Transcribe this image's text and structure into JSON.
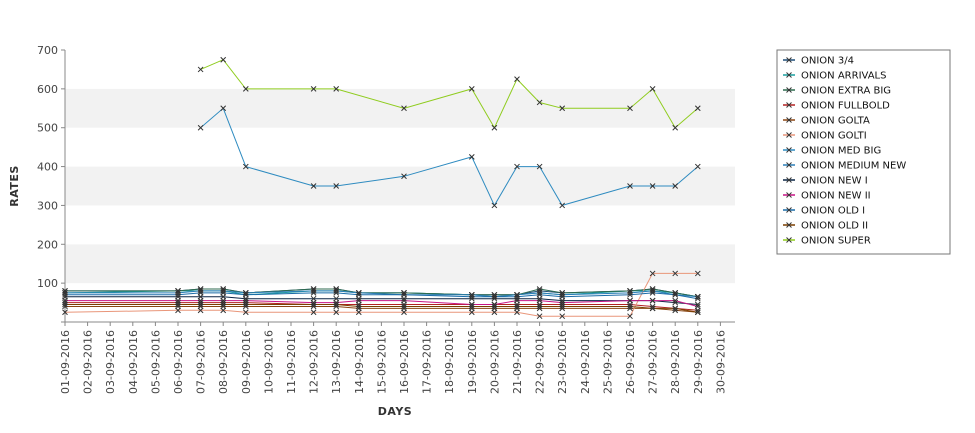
{
  "chart_data": {
    "type": "line",
    "xlabel": "DAYS",
    "ylabel": "RATES",
    "ylim": [
      0,
      700
    ],
    "yticks": [
      100,
      200,
      300,
      400,
      500,
      600,
      700
    ],
    "grid": "alternating horizontal bands",
    "legend_position": "right",
    "x_categories": [
      "01-09-2016",
      "02-09-2016",
      "03-09-2016",
      "04-09-2016",
      "05-09-2016",
      "06-09-2016",
      "07-09-2016",
      "08-09-2016",
      "09-09-2016",
      "10-09-2016",
      "11-09-2016",
      "12-09-2016",
      "13-09-2016",
      "14-09-2016",
      "15-09-2016",
      "16-09-2016",
      "17-09-2016",
      "18-09-2016",
      "19-09-2016",
      "20-09-2016",
      "21-09-2016",
      "22-09-2016",
      "23-09-2016",
      "24-09-2016",
      "25-09-2016",
      "26-09-2016",
      "27-09-2016",
      "28-09-2016",
      "29-09-2016",
      "30-09-2016"
    ],
    "series": [
      {
        "name": "ONION 3/4",
        "color": "#1f4e79",
        "points": [
          [
            "01-09-2016",
            80
          ],
          [
            "06-09-2016",
            80
          ],
          [
            "07-09-2016",
            85
          ],
          [
            "08-09-2016",
            85
          ],
          [
            "09-09-2016",
            75
          ],
          [
            "12-09-2016",
            85
          ],
          [
            "13-09-2016",
            85
          ],
          [
            "14-09-2016",
            75
          ],
          [
            "16-09-2016",
            75
          ],
          [
            "19-09-2016",
            70
          ],
          [
            "20-09-2016",
            70
          ],
          [
            "21-09-2016",
            70
          ],
          [
            "22-09-2016",
            80
          ],
          [
            "23-09-2016",
            75
          ],
          [
            "26-09-2016",
            80
          ],
          [
            "27-09-2016",
            85
          ],
          [
            "28-09-2016",
            75
          ],
          [
            "29-09-2016",
            65
          ]
        ]
      },
      {
        "name": "ONION ARRIVALS",
        "color": "#1aa0a0",
        "points": [
          [
            "01-09-2016",
            75
          ],
          [
            "06-09-2016",
            80
          ],
          [
            "07-09-2016",
            80
          ],
          [
            "08-09-2016",
            80
          ],
          [
            "09-09-2016",
            70
          ],
          [
            "12-09-2016",
            80
          ],
          [
            "13-09-2016",
            80
          ],
          [
            "14-09-2016",
            75
          ],
          [
            "16-09-2016",
            75
          ],
          [
            "19-09-2016",
            70
          ],
          [
            "20-09-2016",
            65
          ],
          [
            "21-09-2016",
            70
          ],
          [
            "22-09-2016",
            75
          ],
          [
            "23-09-2016",
            70
          ],
          [
            "26-09-2016",
            80
          ],
          [
            "27-09-2016",
            80
          ],
          [
            "28-09-2016",
            75
          ],
          [
            "29-09-2016",
            65
          ]
        ]
      },
      {
        "name": "ONION EXTRA BIG",
        "color": "#2d6a4f",
        "points": [
          [
            "01-09-2016",
            80
          ],
          [
            "06-09-2016",
            80
          ],
          [
            "07-09-2016",
            85
          ],
          [
            "08-09-2016",
            85
          ],
          [
            "09-09-2016",
            75
          ],
          [
            "12-09-2016",
            85
          ],
          [
            "13-09-2016",
            85
          ],
          [
            "14-09-2016",
            75
          ],
          [
            "16-09-2016",
            75
          ],
          [
            "19-09-2016",
            70
          ],
          [
            "20-09-2016",
            70
          ],
          [
            "21-09-2016",
            70
          ],
          [
            "22-09-2016",
            85
          ],
          [
            "23-09-2016",
            75
          ],
          [
            "26-09-2016",
            80
          ],
          [
            "27-09-2016",
            85
          ],
          [
            "28-09-2016",
            75
          ],
          [
            "29-09-2016",
            65
          ]
        ]
      },
      {
        "name": "ONION FULLBOLD",
        "color": "#b22222",
        "points": [
          [
            "01-09-2016",
            50
          ],
          [
            "06-09-2016",
            50
          ],
          [
            "07-09-2016",
            50
          ],
          [
            "08-09-2016",
            50
          ],
          [
            "09-09-2016",
            50
          ],
          [
            "12-09-2016",
            45
          ],
          [
            "13-09-2016",
            45
          ],
          [
            "14-09-2016",
            45
          ],
          [
            "16-09-2016",
            45
          ],
          [
            "19-09-2016",
            45
          ],
          [
            "20-09-2016",
            45
          ],
          [
            "21-09-2016",
            45
          ],
          [
            "22-09-2016",
            45
          ],
          [
            "23-09-2016",
            45
          ],
          [
            "26-09-2016",
            45
          ],
          [
            "27-09-2016",
            40
          ],
          [
            "28-09-2016",
            35
          ],
          [
            "29-09-2016",
            30
          ]
        ]
      },
      {
        "name": "ONION GOLTA",
        "color": "#8b4513",
        "points": [
          [
            "01-09-2016",
            40
          ],
          [
            "06-09-2016",
            40
          ],
          [
            "07-09-2016",
            40
          ],
          [
            "08-09-2016",
            40
          ],
          [
            "09-09-2016",
            40
          ],
          [
            "12-09-2016",
            40
          ],
          [
            "13-09-2016",
            40
          ],
          [
            "14-09-2016",
            35
          ],
          [
            "16-09-2016",
            35
          ],
          [
            "19-09-2016",
            35
          ],
          [
            "20-09-2016",
            35
          ],
          [
            "21-09-2016",
            35
          ],
          [
            "22-09-2016",
            35
          ],
          [
            "23-09-2016",
            35
          ],
          [
            "26-09-2016",
            35
          ],
          [
            "27-09-2016",
            35
          ],
          [
            "28-09-2016",
            30
          ],
          [
            "29-09-2016",
            25
          ]
        ]
      },
      {
        "name": "ONION GOLTI",
        "color": "#e9967a",
        "points": [
          [
            "01-09-2016",
            25
          ],
          [
            "06-09-2016",
            30
          ],
          [
            "07-09-2016",
            30
          ],
          [
            "08-09-2016",
            30
          ],
          [
            "09-09-2016",
            25
          ],
          [
            "12-09-2016",
            25
          ],
          [
            "13-09-2016",
            25
          ],
          [
            "14-09-2016",
            25
          ],
          [
            "16-09-2016",
            25
          ],
          [
            "19-09-2016",
            25
          ],
          [
            "20-09-2016",
            25
          ],
          [
            "21-09-2016",
            25
          ],
          [
            "22-09-2016",
            15
          ],
          [
            "23-09-2016",
            15
          ],
          [
            "26-09-2016",
            15
          ],
          [
            "27-09-2016",
            125
          ],
          [
            "28-09-2016",
            125
          ],
          [
            "29-09-2016",
            125
          ]
        ]
      },
      {
        "name": "ONION MED BIG",
        "color": "#2e8bc0",
        "points": [
          [
            "07-09-2016",
            500
          ],
          [
            "08-09-2016",
            550
          ],
          [
            "09-09-2016",
            400
          ],
          [
            "12-09-2016",
            350
          ],
          [
            "13-09-2016",
            350
          ],
          [
            "16-09-2016",
            375
          ],
          [
            "19-09-2016",
            425
          ],
          [
            "20-09-2016",
            300
          ],
          [
            "21-09-2016",
            400
          ],
          [
            "22-09-2016",
            400
          ],
          [
            "23-09-2016",
            300
          ],
          [
            "26-09-2016",
            350
          ],
          [
            "27-09-2016",
            350
          ],
          [
            "28-09-2016",
            350
          ],
          [
            "29-09-2016",
            400
          ]
        ]
      },
      {
        "name": "ONION MEDIUM NEW",
        "color": "#2c7fb8",
        "points": [
          [
            "01-09-2016",
            75
          ],
          [
            "06-09-2016",
            75
          ],
          [
            "07-09-2016",
            80
          ],
          [
            "08-09-2016",
            80
          ],
          [
            "09-09-2016",
            75
          ],
          [
            "12-09-2016",
            80
          ],
          [
            "13-09-2016",
            80
          ],
          [
            "14-09-2016",
            75
          ],
          [
            "16-09-2016",
            70
          ],
          [
            "19-09-2016",
            70
          ],
          [
            "20-09-2016",
            65
          ],
          [
            "21-09-2016",
            70
          ],
          [
            "22-09-2016",
            75
          ],
          [
            "23-09-2016",
            70
          ],
          [
            "26-09-2016",
            75
          ],
          [
            "27-09-2016",
            80
          ],
          [
            "28-09-2016",
            70
          ],
          [
            "29-09-2016",
            65
          ]
        ]
      },
      {
        "name": "ONION NEW I",
        "color": "#0b2545",
        "points": [
          [
            "01-09-2016",
            65
          ],
          [
            "06-09-2016",
            65
          ],
          [
            "07-09-2016",
            65
          ],
          [
            "08-09-2016",
            65
          ],
          [
            "09-09-2016",
            60
          ],
          [
            "12-09-2016",
            60
          ],
          [
            "13-09-2016",
            60
          ],
          [
            "14-09-2016",
            60
          ],
          [
            "16-09-2016",
            60
          ],
          [
            "19-09-2016",
            60
          ],
          [
            "20-09-2016",
            60
          ],
          [
            "21-09-2016",
            60
          ],
          [
            "22-09-2016",
            60
          ],
          [
            "23-09-2016",
            55
          ],
          [
            "26-09-2016",
            55
          ],
          [
            "27-09-2016",
            55
          ],
          [
            "28-09-2016",
            50
          ],
          [
            "29-09-2016",
            45
          ]
        ]
      },
      {
        "name": "ONION NEW II",
        "color": "#c71585",
        "points": [
          [
            "01-09-2016",
            55
          ],
          [
            "06-09-2016",
            55
          ],
          [
            "07-09-2016",
            55
          ],
          [
            "08-09-2016",
            55
          ],
          [
            "09-09-2016",
            55
          ],
          [
            "12-09-2016",
            50
          ],
          [
            "13-09-2016",
            50
          ],
          [
            "14-09-2016",
            55
          ],
          [
            "16-09-2016",
            55
          ],
          [
            "19-09-2016",
            45
          ],
          [
            "20-09-2016",
            45
          ],
          [
            "21-09-2016",
            55
          ],
          [
            "22-09-2016",
            55
          ],
          [
            "23-09-2016",
            50
          ],
          [
            "26-09-2016",
            55
          ],
          [
            "27-09-2016",
            55
          ],
          [
            "28-09-2016",
            55
          ],
          [
            "29-09-2016",
            40
          ]
        ]
      },
      {
        "name": "ONION OLD I",
        "color": "#1b6ca8",
        "points": [
          [
            "01-09-2016",
            70
          ],
          [
            "06-09-2016",
            70
          ],
          [
            "07-09-2016",
            75
          ],
          [
            "08-09-2016",
            75
          ],
          [
            "09-09-2016",
            70
          ],
          [
            "12-09-2016",
            75
          ],
          [
            "13-09-2016",
            75
          ],
          [
            "14-09-2016",
            70
          ],
          [
            "16-09-2016",
            70
          ],
          [
            "19-09-2016",
            65
          ],
          [
            "20-09-2016",
            65
          ],
          [
            "21-09-2016",
            65
          ],
          [
            "22-09-2016",
            70
          ],
          [
            "23-09-2016",
            65
          ],
          [
            "26-09-2016",
            70
          ],
          [
            "27-09-2016",
            75
          ],
          [
            "28-09-2016",
            70
          ],
          [
            "29-09-2016",
            60
          ]
        ]
      },
      {
        "name": "ONION OLD II",
        "color": "#7b3f00",
        "points": [
          [
            "01-09-2016",
            45
          ],
          [
            "06-09-2016",
            45
          ],
          [
            "07-09-2016",
            45
          ],
          [
            "08-09-2016",
            45
          ],
          [
            "09-09-2016",
            45
          ],
          [
            "12-09-2016",
            45
          ],
          [
            "13-09-2016",
            45
          ],
          [
            "14-09-2016",
            40
          ],
          [
            "16-09-2016",
            40
          ],
          [
            "19-09-2016",
            40
          ],
          [
            "20-09-2016",
            40
          ],
          [
            "21-09-2016",
            40
          ],
          [
            "22-09-2016",
            40
          ],
          [
            "23-09-2016",
            40
          ],
          [
            "26-09-2016",
            40
          ],
          [
            "27-09-2016",
            35
          ],
          [
            "28-09-2016",
            35
          ],
          [
            "29-09-2016",
            25
          ]
        ]
      },
      {
        "name": "ONION SUPER",
        "color": "#8fcc1e",
        "points": [
          [
            "07-09-2016",
            650
          ],
          [
            "08-09-2016",
            675
          ],
          [
            "09-09-2016",
            600
          ],
          [
            "12-09-2016",
            600
          ],
          [
            "13-09-2016",
            600
          ],
          [
            "16-09-2016",
            550
          ],
          [
            "19-09-2016",
            600
          ],
          [
            "20-09-2016",
            500
          ],
          [
            "21-09-2016",
            625
          ],
          [
            "22-09-2016",
            565
          ],
          [
            "23-09-2016",
            550
          ],
          [
            "26-09-2016",
            550
          ],
          [
            "27-09-2016",
            600
          ],
          [
            "28-09-2016",
            500
          ],
          [
            "29-09-2016",
            550
          ]
        ]
      }
    ]
  }
}
